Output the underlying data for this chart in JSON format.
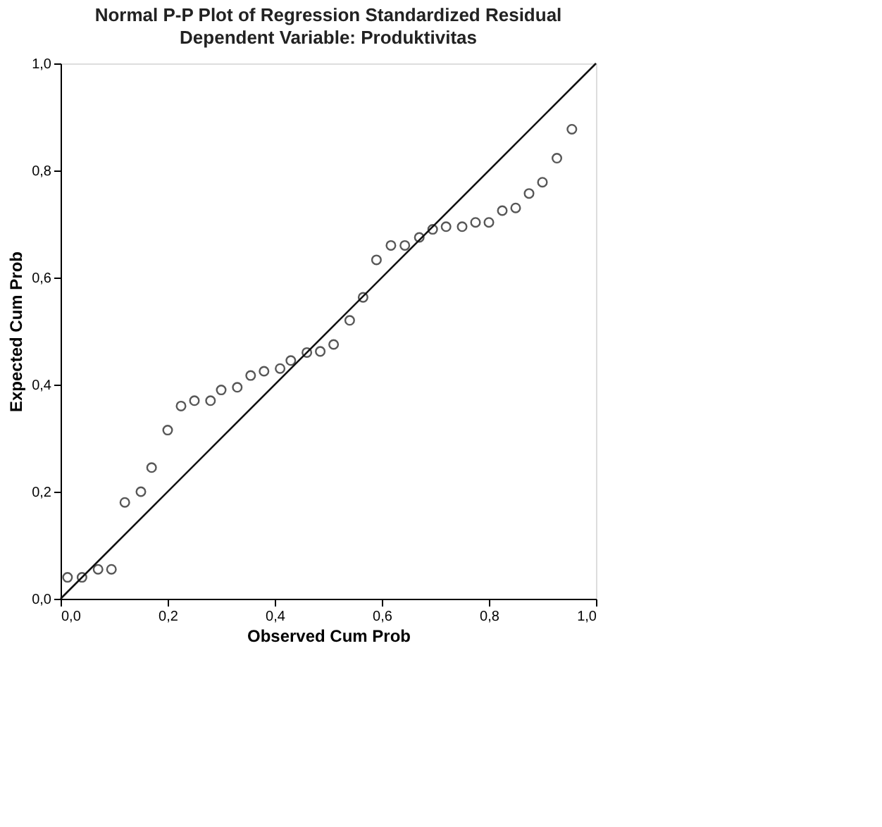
{
  "chart_data": {
    "type": "scatter",
    "title": "Normal P-P Plot of Regression Standardized Residual",
    "subtitle": "Dependent Variable: Produktivitas",
    "xlabel": "Observed Cum Prob",
    "ylabel": "Expected Cum Prob",
    "xlim": [
      0,
      1
    ],
    "ylim": [
      0,
      1
    ],
    "xticks": [
      {
        "value": 0,
        "label": "0,0"
      },
      {
        "value": 0.2,
        "label": "0,2"
      },
      {
        "value": 0.4,
        "label": "0,4"
      },
      {
        "value": 0.6,
        "label": "0,6"
      },
      {
        "value": 0.8,
        "label": "0,8"
      },
      {
        "value": 1,
        "label": "1,0"
      }
    ],
    "yticks": [
      {
        "value": 0,
        "label": "0,0"
      },
      {
        "value": 0.2,
        "label": "0,2"
      },
      {
        "value": 0.4,
        "label": "0,4"
      },
      {
        "value": 0.6,
        "label": "0,6"
      },
      {
        "value": 0.8,
        "label": "0,8"
      },
      {
        "value": 1,
        "label": "1,0"
      }
    ],
    "grid": false,
    "legend": false,
    "marker": "circle",
    "series": [
      {
        "color": "#111111",
        "x": [
          0.013,
          0.04,
          0.07,
          0.095,
          0.12,
          0.15,
          0.17,
          0.2,
          0.225,
          0.25,
          0.28,
          0.3,
          0.33,
          0.355,
          0.38,
          0.41,
          0.43,
          0.46,
          0.485,
          0.51,
          0.54,
          0.565,
          0.59,
          0.617,
          0.643,
          0.67,
          0.695,
          0.72,
          0.75,
          0.775,
          0.8,
          0.825,
          0.85,
          0.875,
          0.9,
          0.927,
          0.955
        ],
        "values": [
          0.04,
          0.04,
          0.055,
          0.055,
          0.18,
          0.2,
          0.245,
          0.315,
          0.36,
          0.37,
          0.37,
          0.39,
          0.395,
          0.417,
          0.425,
          0.43,
          0.445,
          0.46,
          0.462,
          0.475,
          0.52,
          0.563,
          0.633,
          0.66,
          0.66,
          0.675,
          0.69,
          0.695,
          0.695,
          0.703,
          0.703,
          0.725,
          0.73,
          0.757,
          0.778,
          0.823,
          0.877
        ]
      },
      {
        "type": "line",
        "color": "#111111",
        "x": [
          0,
          1
        ],
        "values": [
          0,
          1
        ],
        "marker": "none",
        "line_style": "solid"
      }
    ]
  }
}
